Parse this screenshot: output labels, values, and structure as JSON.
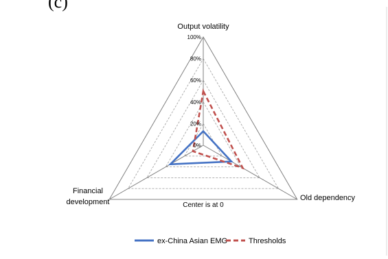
{
  "panel_label": "(c)",
  "chart_data": {
    "type": "radar",
    "title": "",
    "axes": [
      "Output volatility",
      "Old dependency",
      "Financial development"
    ],
    "axis_label_lines": {
      "Output volatility": [
        "Output volatility"
      ],
      "Old dependency": [
        "Old dependency"
      ],
      "Financial development": [
        "Financial",
        "development"
      ]
    },
    "radial_ticks": [
      "0%",
      "20%",
      "40%",
      "60%",
      "80%",
      "100%"
    ],
    "range": [
      0,
      100
    ],
    "note": "Center is at 0",
    "series": [
      {
        "name": "ex-China Asian EMG",
        "values": [
          13,
          30,
          35
        ],
        "color": "#4472C4",
        "dash": "solid"
      },
      {
        "name": "Thresholds",
        "values": [
          50,
          42,
          11
        ],
        "color": "#C0504D",
        "dash": "dashed"
      }
    ],
    "legend_position": "bottom",
    "gridlines": true
  },
  "colors": {
    "grid": "#a6a6a6",
    "axis": "#7f7f7f",
    "frame": "#d9d9d9"
  }
}
